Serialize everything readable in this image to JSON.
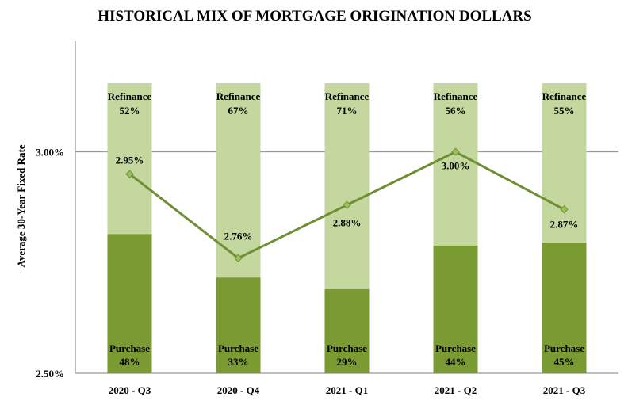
{
  "chart_data": {
    "type": "bar",
    "subtype": "stacked-bar-with-line",
    "title": "HISTORICAL MIX OF MORTGAGE ORIGINATION DOLLARS",
    "xlabel": "",
    "ylabel": "Average 30-Year Fixed Rate",
    "ylim": [
      2.5,
      3.25
    ],
    "yticks": [
      {
        "value": 2.5,
        "label": "2.50%"
      },
      {
        "value": 3.0,
        "label": "3.00%"
      }
    ],
    "grid": "horizontal at 3.00%",
    "categories": [
      "2020 - Q3",
      "2020 - Q4",
      "2021 - Q1",
      "2021 - Q2",
      "2021 - Q3"
    ],
    "series": [
      {
        "name": "Purchase",
        "kind": "bar-share",
        "values": [
          48,
          33,
          29,
          44,
          45
        ],
        "labels": [
          "48%",
          "33%",
          "29%",
          "44%",
          "45%"
        ],
        "color": "#7a9a32"
      },
      {
        "name": "Refinance",
        "kind": "bar-share",
        "values": [
          52,
          67,
          71,
          56,
          55
        ],
        "labels": [
          "52%",
          "67%",
          "71%",
          "56%",
          "55%"
        ],
        "color": "#c4d79f"
      },
      {
        "name": "Average 30-Year Fixed Rate",
        "kind": "line",
        "values": [
          2.95,
          2.76,
          2.88,
          3.0,
          2.87
        ],
        "labels": [
          "2.95%",
          "2.76%",
          "2.88%",
          "3.00%",
          "2.87%"
        ],
        "color": "#6f8f35"
      }
    ]
  }
}
